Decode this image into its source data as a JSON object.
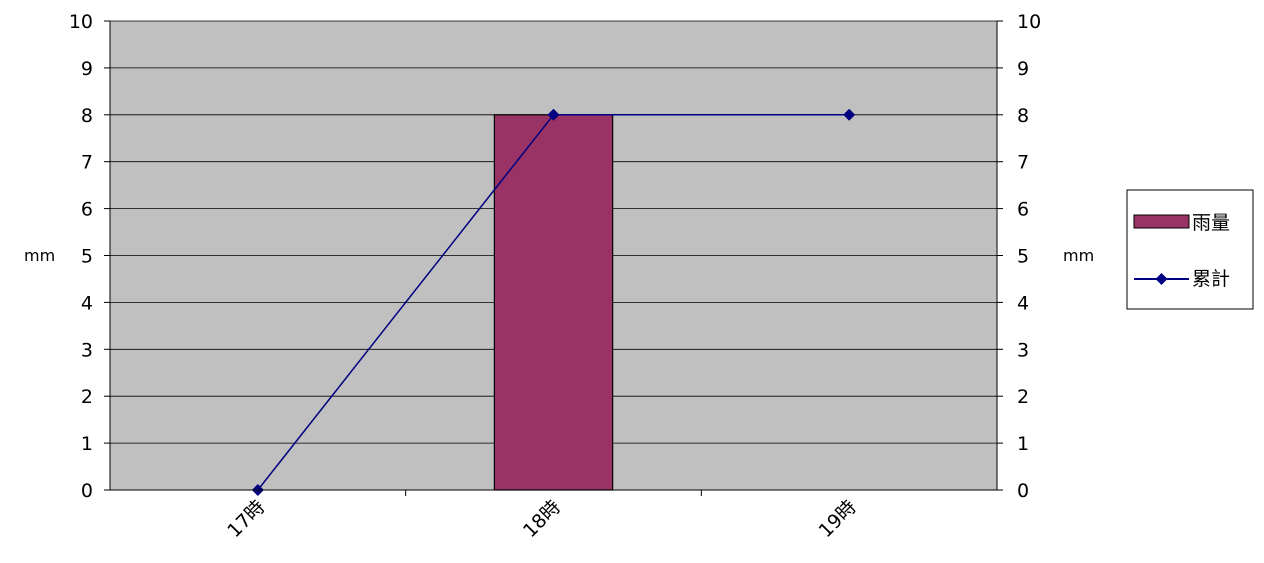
{
  "chart_data": {
    "type": "bar",
    "categories": [
      "17時",
      "18時",
      "19時"
    ],
    "series": [
      {
        "name": "雨量",
        "type": "bar",
        "axis": "left",
        "color": "#993366",
        "values": [
          0,
          8,
          0
        ]
      },
      {
        "name": "累計",
        "type": "line",
        "axis": "right",
        "color": "#000080",
        "marker": "diamond",
        "values": [
          0,
          8,
          8
        ]
      }
    ],
    "ylabel": "mm",
    "y2label": "mm",
    "ylim": [
      0,
      10
    ],
    "y2lim": [
      0,
      10
    ],
    "yticks": [
      0,
      1,
      2,
      3,
      4,
      5,
      6,
      7,
      8,
      9,
      10
    ],
    "grid": true,
    "plot_background": "#c0c0c0",
    "legend_position": "right"
  }
}
